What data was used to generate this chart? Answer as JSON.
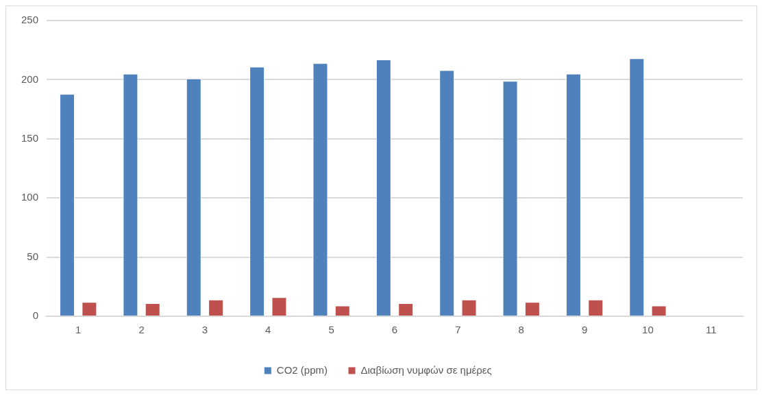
{
  "chart_data": {
    "type": "bar",
    "categories": [
      "1",
      "2",
      "3",
      "4",
      "5",
      "6",
      "7",
      "8",
      "9",
      "10",
      "11"
    ],
    "series": [
      {
        "name": "CO2 (ppm)",
        "color": "#4f81bd",
        "values": [
          188,
          205,
          201,
          211,
          214,
          217,
          208,
          199,
          205,
          218,
          null
        ]
      },
      {
        "name": "Διαβίωση νυμφών σε ημέρες",
        "color": "#c0504d",
        "values": [
          12,
          11,
          14,
          16,
          9,
          11,
          14,
          12,
          14,
          9,
          null
        ]
      }
    ],
    "ylim": [
      0,
      250
    ],
    "yticks": [
      0,
      50,
      100,
      150,
      200,
      250
    ],
    "grid": "y",
    "legend": "bottom"
  }
}
